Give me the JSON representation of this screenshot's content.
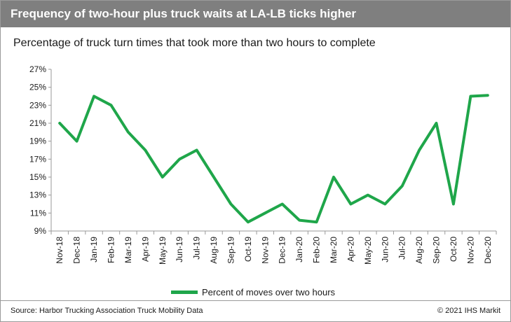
{
  "header": {
    "title": "Frequency of two-hour plus truck waits at LA-LB ticks higher"
  },
  "chart_data": {
    "type": "line",
    "title": "Percentage of truck turn times that took more than two hours to complete",
    "xlabel": "",
    "ylabel": "",
    "categories": [
      "Nov-18",
      "Dec-18",
      "Jan-19",
      "Feb-19",
      "Mar-19",
      "Apr-19",
      "May-19",
      "Jun-19",
      "Jul-19",
      "Aug-19",
      "Sep-19",
      "Oct-19",
      "Nov-19",
      "Dec-19",
      "Jan-20",
      "Feb-20",
      "Mar-20",
      "Apr-20",
      "May-20",
      "Jun-20",
      "Jul-20",
      "Aug-20",
      "Sep-20",
      "Oct-20",
      "Nov-20",
      "Dec-20"
    ],
    "series": [
      {
        "name": "Percent of moves over two hours",
        "color": "#1fa64a",
        "values": [
          21,
          19,
          24,
          23,
          20,
          18,
          15,
          17,
          18,
          15,
          12,
          10,
          11,
          12,
          10.2,
          10,
          15,
          12,
          13,
          12,
          14,
          18,
          21,
          12,
          24,
          24.1
        ]
      }
    ],
    "ylim": [
      9,
      27
    ],
    "yticks": [
      9,
      11,
      13,
      15,
      17,
      19,
      21,
      23,
      25,
      27
    ],
    "ytick_format": "percent",
    "grid": false,
    "legend_position": "bottom"
  },
  "footer": {
    "source": "Source: Harbor Trucking Association Truck Mobility Data",
    "copyright": "© 2021 IHS Markit"
  }
}
